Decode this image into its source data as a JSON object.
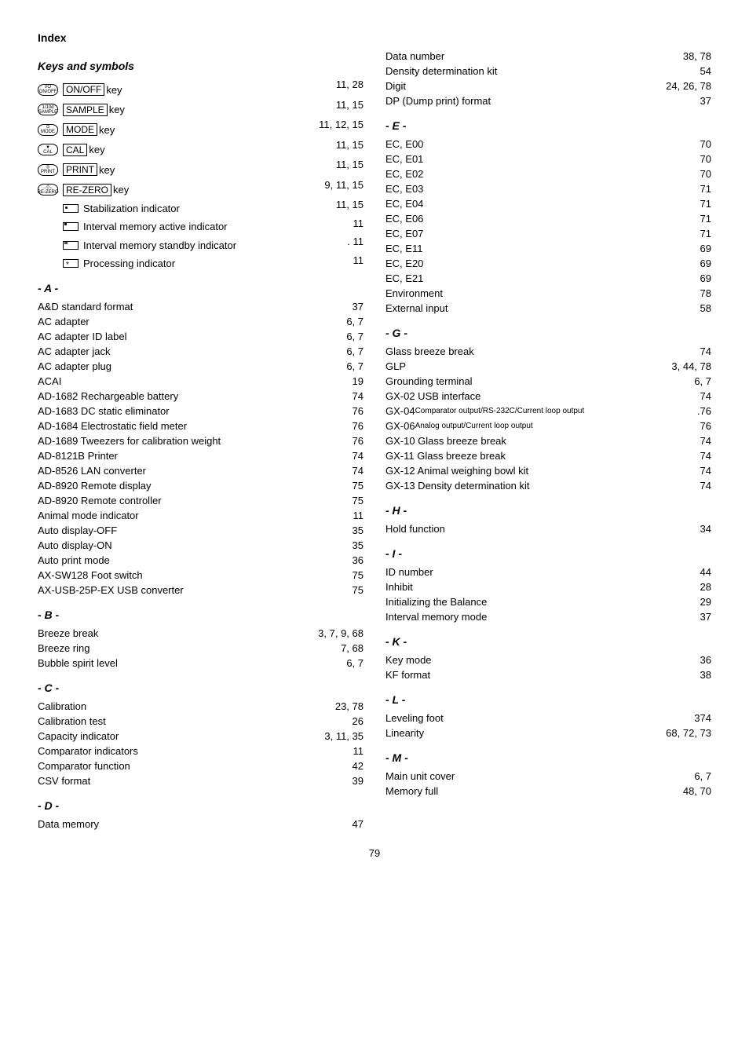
{
  "title": "Index",
  "subtitle": "Keys and symbols",
  "page_number": "79",
  "keyrows": [
    {
      "icon": "I/O\nON/OFF",
      "box": "ON/OFF",
      "tail": " key ",
      "page": "11, 28"
    },
    {
      "icon": "1/10d\nSAMPLE",
      "box": "SAMPLE",
      "tail": " key ",
      "page": "11, 15"
    },
    {
      "icon": "⊙\nMODE",
      "box": "MODE",
      "tail": " key ",
      "page": "11, 12, 15"
    },
    {
      "icon": "▼\nCAL",
      "box": "CAL",
      "tail": " key ",
      "page": "11, 15"
    },
    {
      "icon": "◎\nPRINT",
      "box": "PRINT",
      "tail": " key ",
      "page": "11, 15"
    },
    {
      "icon": "→0←\nRE-ZERO",
      "box": "RE-ZERO",
      "tail": " key",
      "page": "9, 11, 15"
    }
  ],
  "indicatorRows": [
    {
      "cls": "dot",
      "label": "Stabilization indicator",
      "page": "11, 15"
    },
    {
      "cls": "corner",
      "label": "Interval memory active indicator ",
      "page": "11"
    },
    {
      "cls": "blink",
      "label": "Interval memory standby indicator",
      "page": ". 11"
    },
    {
      "cls": "star",
      "label": "Processing indicator ",
      "page": "11"
    }
  ],
  "left": [
    {
      "h": "- A -"
    },
    {
      "l": "A&D standard format ",
      "p": "37"
    },
    {
      "l": "AC adapter",
      "p": "6, 7"
    },
    {
      "l": "AC adapter ID label ",
      "p": "6, 7"
    },
    {
      "l": "AC adapter jack ",
      "p": "6, 7"
    },
    {
      "l": "AC adapter plug",
      "p": "6, 7"
    },
    {
      "l": "ACAI    ",
      "p": "19"
    },
    {
      "l": "AD-1682  Rechargeable battery ",
      "p": "74"
    },
    {
      "l": "AD-1683  DC static eliminator ",
      "p": "76"
    },
    {
      "l": "AD-1684  Electrostatic field meter ",
      "p": "76"
    },
    {
      "l": "AD-1689  Tweezers for calibration weight ",
      "p": "76"
    },
    {
      "l": "AD-8121B Printer",
      "p": "74"
    },
    {
      "l": "AD-8526  LAN converter ",
      "p": "74"
    },
    {
      "l": "AD-8920  Remote display",
      "p": "75"
    },
    {
      "l": "AD-8920  Remote controller ",
      "p": "75"
    },
    {
      "l": "Animal mode indicator ",
      "p": "11"
    },
    {
      "l": "Auto display-OFF",
      "p": "35"
    },
    {
      "l": "Auto display-ON",
      "p": "35"
    },
    {
      "l": "Auto print mode ",
      "p": "36"
    },
    {
      "l": "AX-SW128   Foot switch ",
      "p": "75"
    },
    {
      "l": "AX-USB-25P-EX USB converter",
      "p": "75"
    },
    {
      "h": "- B -"
    },
    {
      "l": "Breeze break ",
      "p": "3, 7, 9, 68"
    },
    {
      "l": "Breeze ring ",
      "p": "7, 68"
    },
    {
      "l": "Bubble spirit level",
      "p": "6, 7"
    },
    {
      "h": "- C -"
    },
    {
      "l": "Calibration",
      "p": "23, 78"
    },
    {
      "l": "Calibration test",
      "p": "26"
    },
    {
      "l": "Capacity indicator ",
      "p": "3, 11, 35"
    },
    {
      "l": "Comparator indicators ",
      "p": "11"
    },
    {
      "l": "Comparator function ",
      "p": "42"
    },
    {
      "l": "CSV format ",
      "p": "39"
    },
    {
      "h": "- D -"
    },
    {
      "l": "Data memory ",
      "p": "47"
    }
  ],
  "right": [
    {
      "l": "Data number ",
      "p": "38, 78"
    },
    {
      "l": "Density determination kit",
      "p": "54"
    },
    {
      "l": "Digit    ",
      "p": "24, 26, 78"
    },
    {
      "l": "DP (Dump print) format ",
      "p": "37"
    },
    {
      "h": "- E -"
    },
    {
      "l": "EC, E00 ",
      "p": "70"
    },
    {
      "l": "EC, E01 ",
      "p": "70"
    },
    {
      "l": "EC, E02 ",
      "p": "70"
    },
    {
      "l": "EC, E03 ",
      "p": "71"
    },
    {
      "l": "EC, E04 ",
      "p": "71"
    },
    {
      "l": "EC, E06 ",
      "p": "71"
    },
    {
      "l": "EC, E07 ",
      "p": "71"
    },
    {
      "l": "EC, E11 ",
      "p": "69"
    },
    {
      "l": "EC, E20 ",
      "p": "69"
    },
    {
      "l": "EC, E21 ",
      "p": " 69"
    },
    {
      "l": "Environment",
      "p": "78"
    },
    {
      "l": "External input ",
      "p": "58"
    },
    {
      "h": "- G -"
    },
    {
      "l": "Glass breeze break",
      "p": "74"
    },
    {
      "l": "GLP     ",
      "p": "3, 44, 78"
    },
    {
      "l": "Grounding terminal ",
      "p": "6, 7"
    },
    {
      "l": "GX-02   USB interface",
      "p": "74"
    },
    {
      "l": "GX-04   Comparator output/RS-232C/Current loop output",
      "p": ".76",
      "small": true
    },
    {
      "l": "GX-06   Analog output/Current loop output",
      "p": "76",
      "small": true
    },
    {
      "l": "GX-10   Glass breeze break ",
      "p": "74"
    },
    {
      "l": "GX-11   Glass breeze break ",
      "p": "74"
    },
    {
      "l": "GX-12   Animal weighing bowl kit ",
      "p": "74"
    },
    {
      "l": "GX-13   Density determination kit ",
      "p": "74"
    },
    {
      "h": "- H -"
    },
    {
      "l": "Hold function ",
      "p": "34"
    },
    {
      "h": "- I -"
    },
    {
      "l": "ID number ",
      "p": "44"
    },
    {
      "l": "Inhibit   ",
      "p": "28"
    },
    {
      "l": "Initializing the Balance ",
      "p": "29"
    },
    {
      "l": "Interval memory mode ",
      "p": "37"
    },
    {
      "h": "- K -"
    },
    {
      "l": "Key mode",
      "p": "36"
    },
    {
      "l": "KF format ",
      "p": "38"
    },
    {
      "h": "- L -"
    },
    {
      "l": "Leveling foot",
      "p": "374"
    },
    {
      "l": "Linearity ",
      "p": "68, 72, 73"
    },
    {
      "h": "- M -"
    },
    {
      "l": "Main unit cover",
      "p": "6, 7"
    },
    {
      "l": "Memory full ",
      "p": "48, 70"
    }
  ]
}
